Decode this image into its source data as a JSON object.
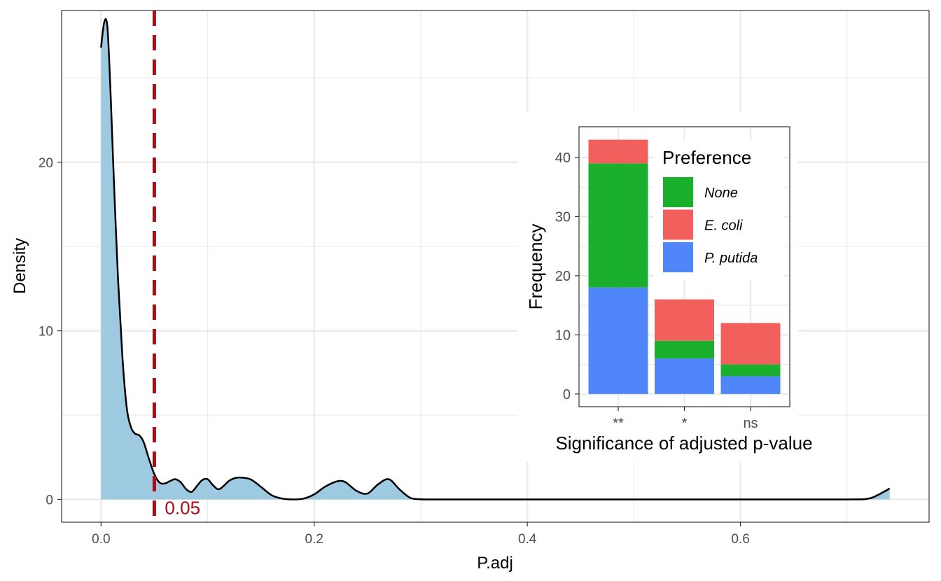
{
  "chart_data": [
    {
      "type": "area",
      "xlabel": "P.adj",
      "ylabel": "Density",
      "xlim": [
        -0.037,
        0.777
      ],
      "ylim": [
        -1.35,
        29.0
      ],
      "x_ticks": [
        0.0,
        0.2,
        0.4,
        0.6
      ],
      "x_tick_labels": [
        "0.0",
        "0.2",
        "0.4",
        "0.6"
      ],
      "y_ticks": [
        0,
        10,
        20
      ],
      "y_tick_labels": [
        "0",
        "10",
        "20"
      ],
      "grid": true,
      "fill_color": "#9ecae1",
      "line_color": "#000000",
      "density_curve": {
        "x": [
          0.0,
          0.003,
          0.006,
          0.009,
          0.012,
          0.016,
          0.02,
          0.024,
          0.028,
          0.032,
          0.036,
          0.04,
          0.045,
          0.05,
          0.055,
          0.06,
          0.065,
          0.07,
          0.075,
          0.08,
          0.085,
          0.09,
          0.095,
          0.1,
          0.105,
          0.11,
          0.115,
          0.12,
          0.125,
          0.13,
          0.14,
          0.15,
          0.16,
          0.17,
          0.18,
          0.19,
          0.2,
          0.21,
          0.22,
          0.225,
          0.23,
          0.24,
          0.25,
          0.26,
          0.27,
          0.28,
          0.29,
          0.3,
          0.31,
          0.35,
          0.4,
          0.5,
          0.6,
          0.7,
          0.72,
          0.73,
          0.74
        ],
        "y": [
          26.8,
          28.3,
          28.0,
          24.0,
          19.0,
          13.0,
          8.5,
          5.5,
          4.3,
          3.9,
          3.8,
          3.4,
          2.4,
          1.5,
          1.0,
          0.95,
          1.1,
          1.2,
          1.0,
          0.6,
          0.45,
          0.8,
          1.15,
          1.2,
          0.85,
          0.6,
          0.8,
          1.1,
          1.25,
          1.3,
          1.2,
          0.75,
          0.25,
          0.05,
          0.0,
          0.05,
          0.3,
          0.75,
          1.05,
          1.1,
          1.0,
          0.5,
          0.35,
          0.9,
          1.2,
          0.6,
          0.1,
          0.01,
          0.0,
          0.0,
          0.0,
          0.0,
          0.0,
          0.0,
          0.05,
          0.3,
          0.65
        ]
      },
      "threshold": {
        "x": 0.05,
        "label": "0.05",
        "color": "#a50f15"
      }
    },
    {
      "type": "bar",
      "stacked": true,
      "xlabel": "Significance of adjusted p-value",
      "ylabel": "Frequency",
      "categories": [
        "**",
        "*",
        "ns"
      ],
      "ylim": [
        -2.15,
        45.2
      ],
      "y_ticks": [
        0,
        10,
        20,
        30,
        40
      ],
      "y_tick_labels": [
        "0",
        "10",
        "20",
        "30",
        "40"
      ],
      "grid": true,
      "legend": {
        "title": "Preference",
        "placement": "top-right"
      },
      "series": [
        {
          "name": "P. putida",
          "color": "#4f87fa",
          "values": [
            18,
            6,
            3
          ]
        },
        {
          "name": "None",
          "color": "#1aaf2c",
          "values": [
            21,
            3,
            2
          ]
        },
        {
          "name": "E. coli",
          "color": "#f1605c",
          "values": [
            4,
            7,
            7
          ]
        }
      ],
      "legend_order": [
        "None",
        "E. coli",
        "P. putida"
      ]
    }
  ]
}
